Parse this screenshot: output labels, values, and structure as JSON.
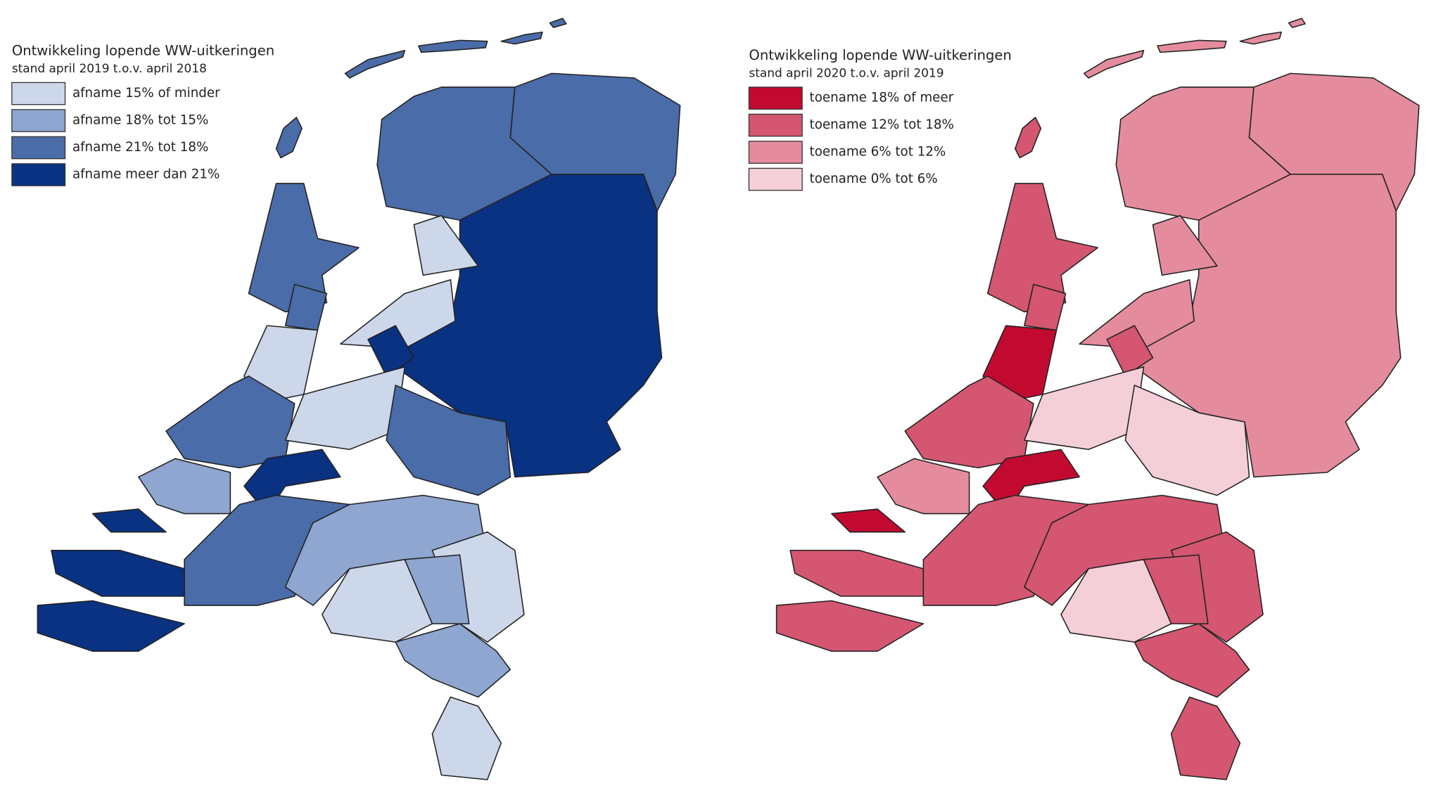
{
  "maps": [
    {
      "title": "Ontwikkeling lopende WW-uitkeringen",
      "subtitle": "stand april 2019 t.o.v. april 2018",
      "legend": [
        {
          "label": "afname 15% of minder",
          "color": "#cdd7ea"
        },
        {
          "label": "afname 18% tot 15%",
          "color": "#8ea6d0"
        },
        {
          "label": "afname 21% tot 18%",
          "color": "#4a6ca8"
        },
        {
          "label": "afname meer dan 21%",
          "color": "#0a3282"
        }
      ]
    },
    {
      "title": "Ontwikkeling lopende WW-uitkeringen",
      "subtitle": "stand april 2020 t.o.v. april 2019",
      "legend": [
        {
          "label": "toename 18% of meer",
          "color": "#c20a30"
        },
        {
          "label": "toename 12% tot 18%",
          "color": "#d45670"
        },
        {
          "label": "toename 6% tot 12%",
          "color": "#e48c9e"
        },
        {
          "label": "toename 0% tot 6%",
          "color": "#f5cfd8"
        }
      ]
    }
  ]
}
